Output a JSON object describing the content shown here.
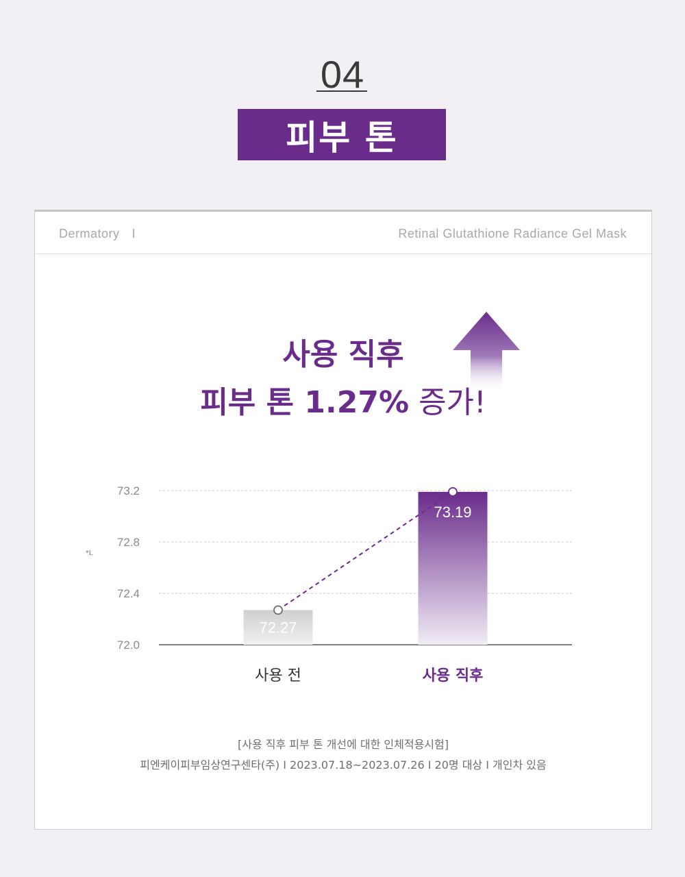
{
  "section": {
    "number": "04",
    "title": "피부 톤"
  },
  "card": {
    "brand": "Dermatory",
    "brand_separator": "I",
    "product": "Retinal Glutathione Radiance Gel Mask",
    "headline_line1": "사용 직후",
    "headline_line2_bold": "피부 톤 1.27%",
    "headline_line2_light": "증가!",
    "footnote_line1": "[사용 직후 피부 톤 개선에 대한 인체적용시험]",
    "footnote_line2": "피엔케이피부임상연구센타(주) I 2023.07.18~2023.07.26 I 20명 대상 I 개인차 있음"
  },
  "colors": {
    "accent": "#6a2c8b",
    "before_bar": "#cfcfcf",
    "text_gray": "#8a8a8a"
  },
  "chart_data": {
    "type": "bar",
    "categories": [
      "사용 전",
      "사용 직후"
    ],
    "values": [
      72.27,
      73.19
    ],
    "value_labels": [
      "72.27",
      "73.19"
    ],
    "yticks": [
      72.0,
      72.4,
      72.8,
      73.2
    ],
    "ytick_labels": [
      "72.0",
      "72.4",
      "72.8",
      "73.2"
    ],
    "ylim": [
      72.0,
      73.2
    ],
    "grid": true,
    "trend_line": "dashed",
    "ylabel": "*L",
    "xlabel": "",
    "title": ""
  }
}
